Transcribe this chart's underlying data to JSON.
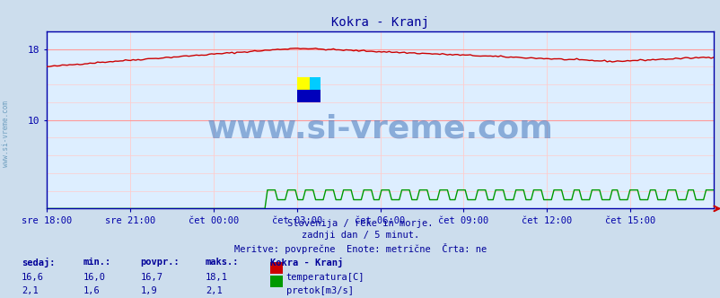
{
  "title": "Kokra - Kranj",
  "title_color": "#000099",
  "bg_color": "#ccdded",
  "plot_bg_color": "#ddeeff",
  "grid_color_major": "#ff9999",
  "grid_color_minor": "#ffcccc",
  "x_axis_labels": [
    "sre 18:00",
    "sre 21:00",
    "čet 00:00",
    "čet 03:00",
    "čet 06:00",
    "čet 09:00",
    "čet 12:00",
    "čet 15:00"
  ],
  "y_label_ticks": [
    10,
    18
  ],
  "ylim": [
    0,
    20
  ],
  "watermark_text": "www.si-vreme.com",
  "watermark_color": "#4477bb",
  "watermark_fontsize": 26,
  "sub_text1": "Slovenija / reke in morje.",
  "sub_text2": "zadnji dan / 5 minut.",
  "sub_text3": "Meritve: povprečne  Enote: metrične  Črta: ne",
  "sub_text_color": "#000099",
  "legend_title": "Kokra - Kranj",
  "legend_label1": "temperatura[C]",
  "legend_label2": "pretok[m3/s]",
  "legend_color1": "#cc0000",
  "legend_color2": "#009900",
  "stats_headers": [
    "sedaj:",
    "min.:",
    "povpr.:",
    "maks.:"
  ],
  "stats_row1": [
    "16,6",
    "16,0",
    "16,7",
    "18,1"
  ],
  "stats_row2": [
    "2,1",
    "1,6",
    "1,9",
    "2,1"
  ],
  "axis_color": "#0000aa",
  "tick_color": "#0000aa",
  "temp_color": "#cc0000",
  "flow_color": "#009900",
  "line_width": 1.0,
  "sidebar_text": "www.si-vreme.com",
  "sidebar_color": "#6699bb"
}
